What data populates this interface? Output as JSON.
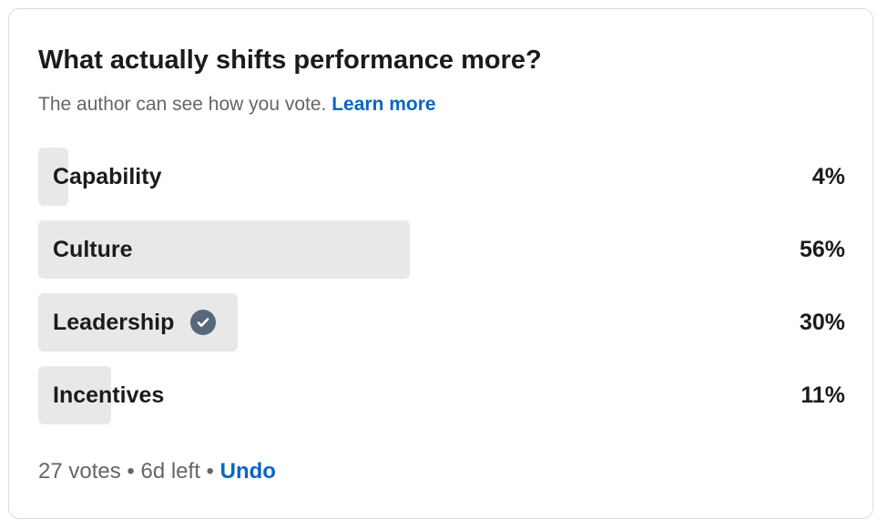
{
  "poll": {
    "question": "What actually shifts performance more?",
    "privacy_note": "The author can see how you vote.",
    "learn_more": "Learn more",
    "options": [
      {
        "label": "Capability",
        "percent_text": "4%",
        "percent": 4,
        "selected": false
      },
      {
        "label": "Culture",
        "percent_text": "56%",
        "percent": 56,
        "selected": false
      },
      {
        "label": "Leadership",
        "percent_text": "30%",
        "percent": 30,
        "selected": true
      },
      {
        "label": "Incentives",
        "percent_text": "11%",
        "percent": 11,
        "selected": false
      }
    ],
    "votes": "27 votes",
    "separator": "•",
    "time_left": "6d left",
    "undo": "Undo"
  },
  "colors": {
    "accent": "#0a66c2",
    "bar": "#e8e8e8",
    "check": "#56687a"
  }
}
